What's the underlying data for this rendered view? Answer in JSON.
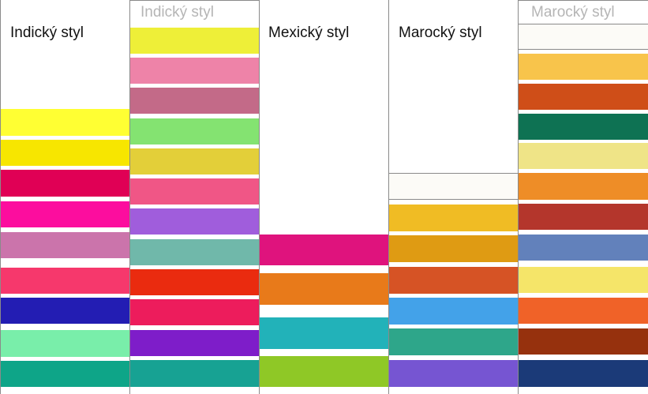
{
  "columns": [
    {
      "title": "Indický styl",
      "title_color": "#111111",
      "swatches": [
        "#ffff33",
        "#f7e600",
        "#e00055",
        "#fc0d9e",
        "#cb74ab",
        "#f6386c",
        "#231db3",
        "#79eeaa",
        "#0ea588"
      ]
    },
    {
      "title": "Indický styl",
      "title_color": "#b5b5b5",
      "swatches": [
        "#eeef38",
        "#ee83a8",
        "#c36a88",
        "#84e371",
        "#e3cf39",
        "#f05686",
        "#a05ddc",
        "#70b8aa",
        "#ea2b0f",
        "#ed1c5c",
        "#7e1dc9",
        "#17a293"
      ]
    },
    {
      "title": "Mexický styl",
      "title_color": "#111111",
      "swatches": [
        "#df137d",
        "#e87a1a",
        "#22b2b9",
        "#8fc826"
      ]
    },
    {
      "title": "Marocký styl",
      "title_color": "#111111",
      "swatches": [
        "#fcfbf7",
        "#f0bc24",
        "#df9b13",
        "#d65325",
        "#43a2e9",
        "#2ea68a",
        "#7655d2"
      ]
    },
    {
      "title": "Marocký styl",
      "title_color": "#b5b5b5",
      "swatches": [
        "#fcfbf7",
        "#f8c44b",
        "#cf4e18",
        "#0e7253",
        "#efe487",
        "#ee8d27",
        "#b4362c",
        "#6281bb",
        "#f5e569",
        "#f06228",
        "#96310d",
        "#1b3a78"
      ]
    }
  ]
}
